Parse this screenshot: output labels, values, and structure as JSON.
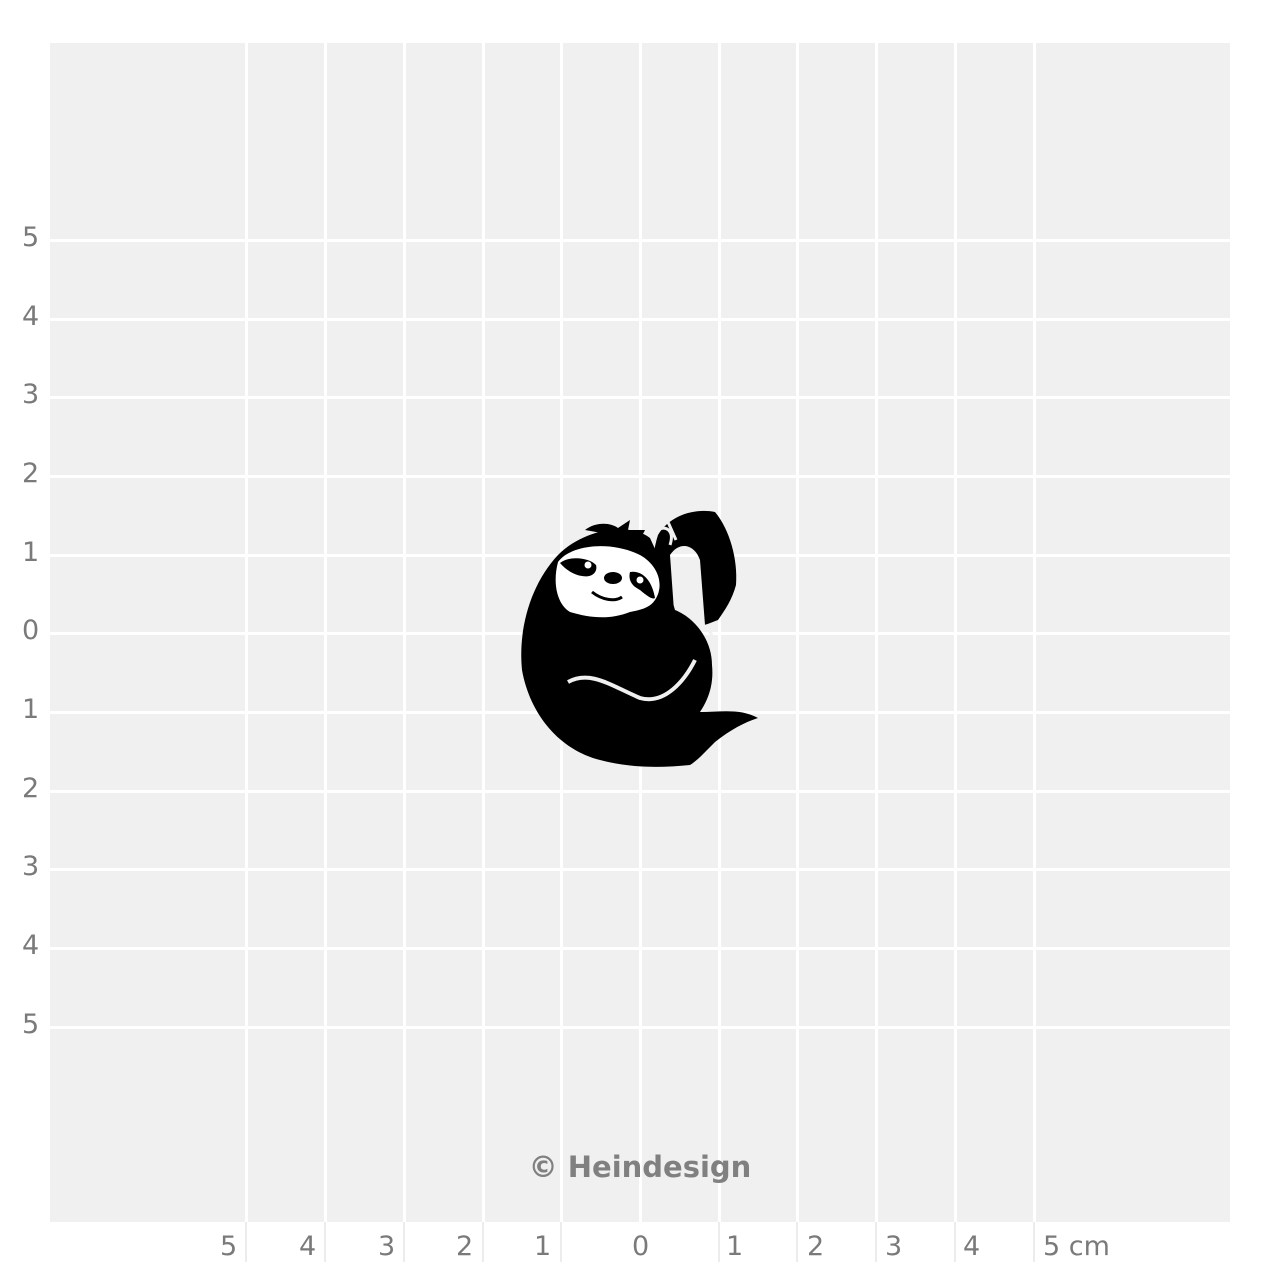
{
  "y_axis_labels": [
    "5",
    "4",
    "3",
    "2",
    "1",
    "0",
    "1",
    "2",
    "3",
    "4",
    "5"
  ],
  "x_axis_labels": [
    "5",
    "4",
    "3",
    "2",
    "1",
    "0",
    "1",
    "2",
    "3",
    "4",
    "5 cm"
  ],
  "copyright": "© Heindesign",
  "image": "sloth-hugging-branch-silhouette",
  "colors": {
    "grid_background": "#f0f0f0",
    "grid_lines": "#ffffff",
    "label_text": "#7a7a7a",
    "motif": "#000000"
  }
}
